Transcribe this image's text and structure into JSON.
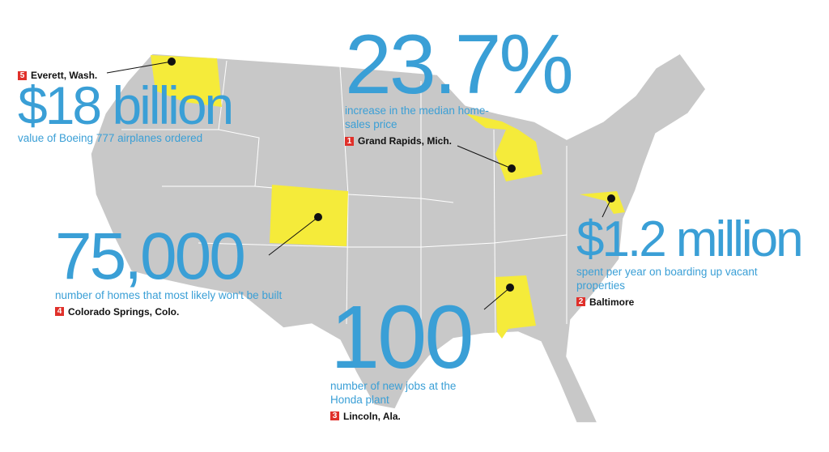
{
  "callouts": [
    {
      "rank": "5",
      "place": "Everett, Wash.",
      "figure": "$18 billion",
      "description": "value of Boeing 777 airplanes ordered"
    },
    {
      "rank": "1",
      "place": "Grand Rapids, Mich.",
      "figure": "23.7%",
      "description": "increase in the median home-sales price"
    },
    {
      "rank": "4",
      "place": "Colorado Springs, Colo.",
      "figure": "75,000",
      "description": "number of homes that most likely won't be built"
    },
    {
      "rank": "2",
      "place": "Baltimore",
      "figure": "$1.2 million",
      "description": "spent per year on boarding up vacant properties"
    },
    {
      "rank": "3",
      "place": "Lincoln, Ala.",
      "figure": "100",
      "description": "number of new jobs at the Honda plant"
    }
  ]
}
